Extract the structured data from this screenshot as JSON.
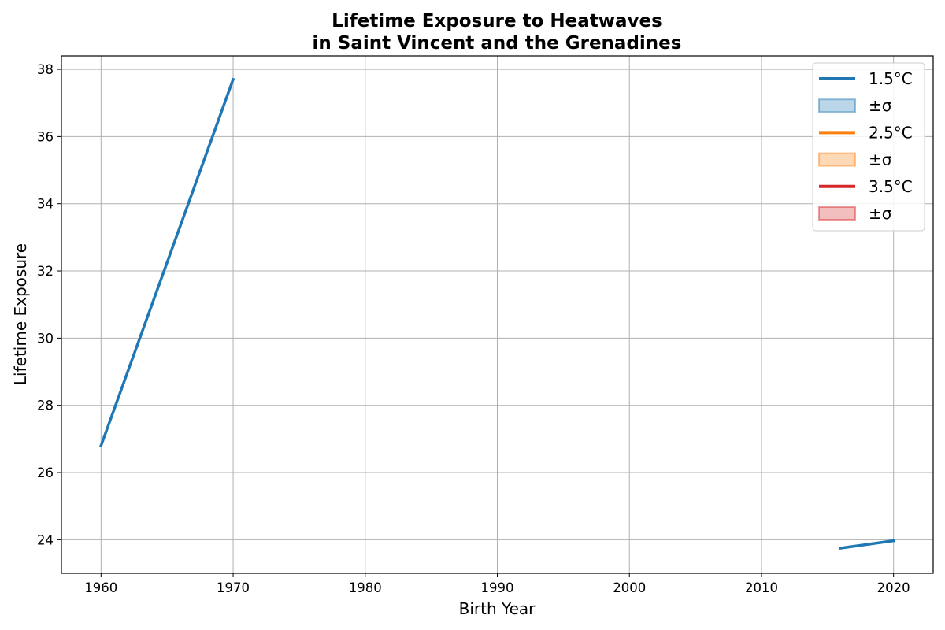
{
  "chart_data": {
    "type": "line",
    "title_lines": [
      "Lifetime Exposure to Heatwaves",
      "in Saint Vincent and the Grenadines"
    ],
    "xlabel": "Birth Year",
    "ylabel": "Lifetime Exposure",
    "xlim": [
      1957,
      2023
    ],
    "ylim": [
      23.0,
      38.4
    ],
    "xticks": [
      1960,
      1970,
      1980,
      1990,
      2000,
      2010,
      2020
    ],
    "yticks": [
      24,
      26,
      28,
      30,
      32,
      34,
      36,
      38
    ],
    "grid": true,
    "legend_position": "top-right",
    "series": [
      {
        "name": "1.5°C",
        "color": "#1f77b4",
        "segments": [
          {
            "x": [
              1960,
              1970
            ],
            "y": [
              26.8,
              37.7
            ]
          },
          {
            "x": [
              2016,
              2020
            ],
            "y": [
              23.75,
              23.97
            ]
          }
        ]
      },
      {
        "name": "2.5°C",
        "color": "#ff7f0e",
        "segments": []
      },
      {
        "name": "3.5°C",
        "color": "#d62728",
        "segments": []
      }
    ],
    "legend": [
      {
        "kind": "line",
        "label": "1.5°C",
        "color": "#1f77b4"
      },
      {
        "kind": "band",
        "label": "±σ",
        "color": "#1f77b4"
      },
      {
        "kind": "line",
        "label": "2.5°C",
        "color": "#ff7f0e"
      },
      {
        "kind": "band",
        "label": "±σ",
        "color": "#ff7f0e"
      },
      {
        "kind": "line",
        "label": "3.5°C",
        "color": "#d62728"
      },
      {
        "kind": "band",
        "label": "±σ",
        "color": "#d62728"
      }
    ]
  }
}
